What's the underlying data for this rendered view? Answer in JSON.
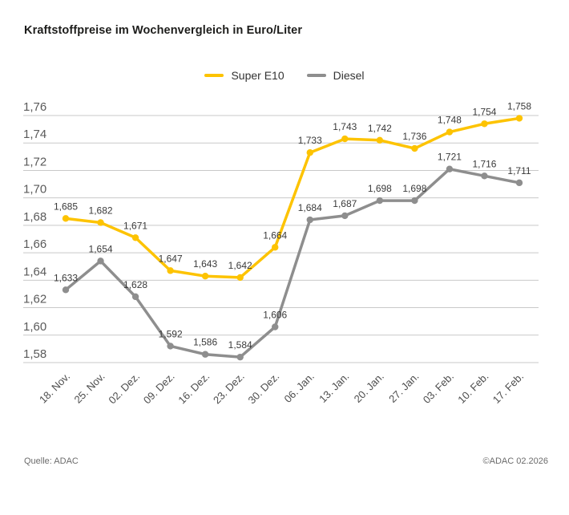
{
  "chart_data": {
    "type": "line",
    "title": "Kraftstoffpreise im Wochenvergleich in Euro/Liter",
    "unit": "Euro/Liter",
    "categories": [
      "18. Nov.",
      "25. Nov.",
      "02. Dez.",
      "09. Dez.",
      "16. Dez.",
      "23. Dez.",
      "30. Dez.",
      "06. Jan.",
      "13. Jan.",
      "20. Jan.",
      "27. Jan.",
      "03. Feb.",
      "10. Feb.",
      "17. Feb."
    ],
    "series": [
      {
        "name": "Super E10",
        "color": "#FDC300",
        "values": [
          1.685,
          1.682,
          1.671,
          1.647,
          1.643,
          1.642,
          1.664,
          1.733,
          1.743,
          1.742,
          1.736,
          1.748,
          1.754,
          1.758
        ]
      },
      {
        "name": "Diesel",
        "color": "#8E8E8E",
        "values": [
          1.633,
          1.654,
          1.628,
          1.592,
          1.586,
          1.584,
          1.606,
          1.684,
          1.687,
          1.698,
          1.698,
          1.721,
          1.716,
          1.711
        ]
      }
    ],
    "ylim": [
      1.58,
      1.76
    ],
    "ytick_step": 0.02,
    "grid": true,
    "legend_position": "top-center",
    "decimal_separator": ",",
    "value_decimals": 3,
    "axis_decimals": 2
  },
  "footer": {
    "source": "Quelle: ADAC",
    "copyright": "©ADAC 02.2026"
  },
  "colors": {
    "grid": "#c9c9c9",
    "axis_text": "#5a5a5a",
    "tick_text": "#4d4d4d",
    "label_text": "#3a3a3a",
    "title_text": "#1d1d1b"
  }
}
